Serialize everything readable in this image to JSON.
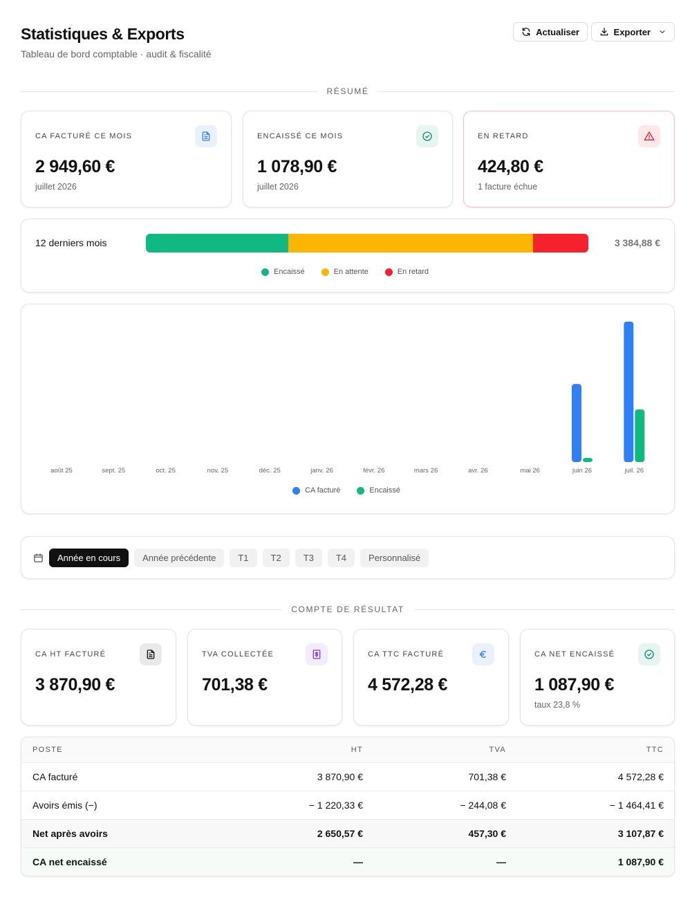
{
  "header": {
    "title": "Statistiques & Exports",
    "subtitle": "Tableau de bord comptable · audit & fiscalité",
    "refresh_label": "Actualiser",
    "export_label": "Exporter"
  },
  "sections": {
    "summary": "RÉSUMÉ",
    "income": "COMPTE DE RÉSULTAT"
  },
  "summary_cards": [
    {
      "label": "CA FACTURÉ CE MOIS",
      "value": "2 949,60 €",
      "sub": "juillet 2026",
      "icon": "document-icon"
    },
    {
      "label": "ENCAISSÉ CE MOIS",
      "value": "1 078,90 €",
      "sub": "juillet 2026",
      "icon": "check-circle-icon"
    },
    {
      "label": "EN RETARD",
      "value": "424,80 €",
      "sub": "1 facture échue",
      "icon": "warning-triangle-icon"
    }
  ],
  "twelve_months": {
    "label": "12 derniers mois",
    "total": "3 384,88 €",
    "segments": [
      {
        "name": "Encaissé",
        "fraction": 0.322,
        "color": "#10b981"
      },
      {
        "name": "En attente",
        "fraction": 0.553,
        "color": "#fbb700"
      },
      {
        "name": "En retard",
        "fraction": 0.125,
        "color": "#f5222d"
      }
    ]
  },
  "chart_data": {
    "type": "bar",
    "categories": [
      "août 25",
      "sept. 25",
      "oct. 25",
      "nov. 25",
      "déc. 25",
      "janv. 26",
      "févr. 26",
      "mars 26",
      "avr. 26",
      "mai 26",
      "juin 26",
      "juil. 26"
    ],
    "series": [
      {
        "name": "CA facturé",
        "color": "#2f7ff5",
        "values": [
          0,
          0,
          0,
          0,
          0,
          0,
          0,
          0,
          0,
          0,
          1620,
          2949.6
        ]
      },
      {
        "name": "Encaissé",
        "color": "#10b981",
        "values": [
          0,
          0,
          0,
          0,
          0,
          0,
          0,
          0,
          0,
          0,
          45,
          1078.9
        ]
      }
    ],
    "ylim": [
      0,
      2949.6
    ]
  },
  "periods": {
    "options": [
      "Année en cours",
      "Année précédente",
      "T1",
      "T2",
      "T3",
      "T4",
      "Personnalisé"
    ],
    "selected": "Année en cours"
  },
  "income_cards": [
    {
      "label": "CA HT FACTURÉ",
      "value": "3 870,90 €",
      "sub": "",
      "icon": "document-icon"
    },
    {
      "label": "TVA COLLECTÉE",
      "value": "701,38 €",
      "sub": "",
      "icon": "dollar-receipt-icon"
    },
    {
      "label": "CA TTC FACTURÉ",
      "value": "4 572,28 €",
      "sub": "",
      "icon": "euro-icon"
    },
    {
      "label": "CA NET ENCAISSÉ",
      "value": "1 087,90 €",
      "sub": "taux 23,8 %",
      "icon": "check-circle-icon"
    }
  ],
  "table": {
    "headers": [
      "POSTE",
      "HT",
      "TVA",
      "TTC"
    ],
    "rows": [
      [
        "CA facturé",
        "3 870,90 €",
        "701,38 €",
        "4 572,28 €"
      ],
      [
        "Avoirs émis (−)",
        "− 1 220,33 €",
        "− 244,08 €",
        "− 1 464,41 €"
      ],
      [
        "Net après avoirs",
        "2 650,57 €",
        "457,30 €",
        "3 107,87 €"
      ],
      [
        "CA net encaissé",
        "—",
        "—",
        "1 087,90 €"
      ]
    ]
  }
}
